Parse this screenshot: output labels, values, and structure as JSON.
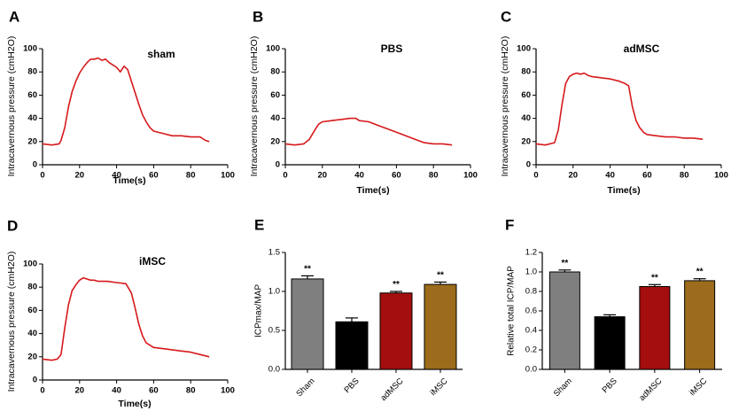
{
  "colors": {
    "trace": "#d7191c",
    "axis": "#000000",
    "sham": "#7f7f7f",
    "pbs": "#000000",
    "admsc": "#a50e0e",
    "imsc": "#9c6b1b"
  },
  "chart_data": [
    {
      "panel": "A",
      "type": "line",
      "title": "sham",
      "xlabel": "Time(s)",
      "ylabel": "Intracavernous pressure (cmH2O)",
      "xlim": [
        0,
        100
      ],
      "ylim": [
        0,
        100
      ],
      "xticks": [
        "0",
        "20",
        "40",
        "60",
        "80",
        "100"
      ],
      "yticks": [
        "0",
        "20",
        "40",
        "60",
        "80",
        "100"
      ],
      "x": [
        0,
        5,
        9,
        10,
        12,
        14,
        16,
        18,
        20,
        22,
        24,
        26,
        28,
        30,
        32,
        34,
        36,
        38,
        40,
        42,
        44,
        46,
        48,
        50,
        52,
        54,
        56,
        58,
        60,
        65,
        70,
        75,
        80,
        85,
        88,
        90
      ],
      "y": [
        18,
        17,
        18,
        21,
        32,
        50,
        63,
        72,
        79,
        84,
        88,
        91,
        91,
        92,
        90,
        91,
        88,
        86,
        84,
        80,
        85,
        82,
        72,
        62,
        52,
        43,
        37,
        32,
        29,
        27,
        25,
        25,
        24,
        24,
        21,
        20
      ]
    },
    {
      "panel": "B",
      "type": "line",
      "title": "PBS",
      "xlabel": "Time(s)",
      "ylabel": "Intracavernous pressure (cmH2O)",
      "xlim": [
        0,
        100
      ],
      "ylim": [
        0,
        100
      ],
      "xticks": [
        "0",
        "20",
        "40",
        "60",
        "80",
        "100"
      ],
      "yticks": [
        "0",
        "20",
        "40",
        "60",
        "80",
        "100"
      ],
      "x": [
        0,
        5,
        10,
        13,
        16,
        18,
        20,
        25,
        30,
        35,
        38,
        40,
        45,
        50,
        55,
        60,
        65,
        70,
        75,
        80,
        85,
        90
      ],
      "y": [
        18,
        17,
        18,
        22,
        30,
        35,
        37,
        38,
        39,
        40,
        40,
        38,
        37,
        34,
        31,
        28,
        25,
        22,
        19,
        18,
        18,
        17
      ]
    },
    {
      "panel": "C",
      "type": "line",
      "title": "adMSC",
      "xlabel": "Time(s)",
      "ylabel": "Intracavernous pressure (cmH2O)",
      "xlim": [
        0,
        100
      ],
      "ylim": [
        0,
        100
      ],
      "xticks": [
        "0",
        "20",
        "40",
        "60",
        "80",
        "100"
      ],
      "yticks": [
        "0",
        "20",
        "40",
        "60",
        "80",
        "100"
      ],
      "x": [
        0,
        5,
        10,
        12,
        14,
        16,
        18,
        20,
        22,
        24,
        26,
        28,
        30,
        35,
        40,
        45,
        48,
        50,
        52,
        54,
        56,
        58,
        60,
        65,
        70,
        75,
        80,
        85,
        90
      ],
      "y": [
        18,
        17,
        19,
        30,
        52,
        70,
        76,
        78,
        79,
        78,
        79,
        77,
        76,
        75,
        74,
        72,
        70,
        68,
        50,
        38,
        32,
        28,
        26,
        25,
        24,
        24,
        23,
        23,
        22
      ]
    },
    {
      "panel": "D",
      "type": "line",
      "title": "iMSC",
      "xlabel": "Time(s)",
      "ylabel": "Intracavernous pressure (cmH2O)",
      "xlim": [
        0,
        100
      ],
      "ylim": [
        0,
        100
      ],
      "xticks": [
        "0",
        "20",
        "40",
        "60",
        "80",
        "100"
      ],
      "yticks": [
        "0",
        "20",
        "40",
        "60",
        "80",
        "100"
      ],
      "x": [
        0,
        5,
        8,
        10,
        12,
        14,
        16,
        18,
        20,
        22,
        24,
        26,
        28,
        30,
        35,
        40,
        45,
        48,
        50,
        52,
        54,
        56,
        58,
        60,
        65,
        70,
        75,
        80,
        85,
        90
      ],
      "y": [
        18,
        17,
        18,
        22,
        45,
        65,
        77,
        82,
        86,
        88,
        87,
        86,
        86,
        85,
        85,
        84,
        83,
        75,
        62,
        48,
        38,
        32,
        30,
        28,
        27,
        26,
        25,
        24,
        22,
        20
      ]
    },
    {
      "panel": "E",
      "type": "bar",
      "ylabel": "ICPmax/MAP",
      "ylim": [
        0,
        1.5
      ],
      "yticks": [
        "0.0",
        "0.5",
        "1.0",
        "1.5"
      ],
      "categories": [
        "Sham",
        "PBS",
        "adMSC",
        "iMSC"
      ],
      "values": [
        1.16,
        0.61,
        0.98,
        1.09
      ],
      "errors": [
        0.04,
        0.05,
        0.02,
        0.03
      ],
      "annotations": [
        "**",
        "",
        "**",
        "**"
      ]
    },
    {
      "panel": "F",
      "type": "bar",
      "ylabel": "Relative total ICP/MAP",
      "ylim": [
        0,
        1.2
      ],
      "yticks": [
        "0.0",
        "0.2",
        "0.4",
        "0.6",
        "0.8",
        "1.0",
        "1.2"
      ],
      "categories": [
        "Sham",
        "PBS",
        "adMSC",
        "iMSC"
      ],
      "values": [
        1.0,
        0.54,
        0.85,
        0.91
      ],
      "errors": [
        0.02,
        0.02,
        0.02,
        0.02
      ],
      "annotations": [
        "**",
        "",
        "**",
        "**"
      ]
    }
  ]
}
